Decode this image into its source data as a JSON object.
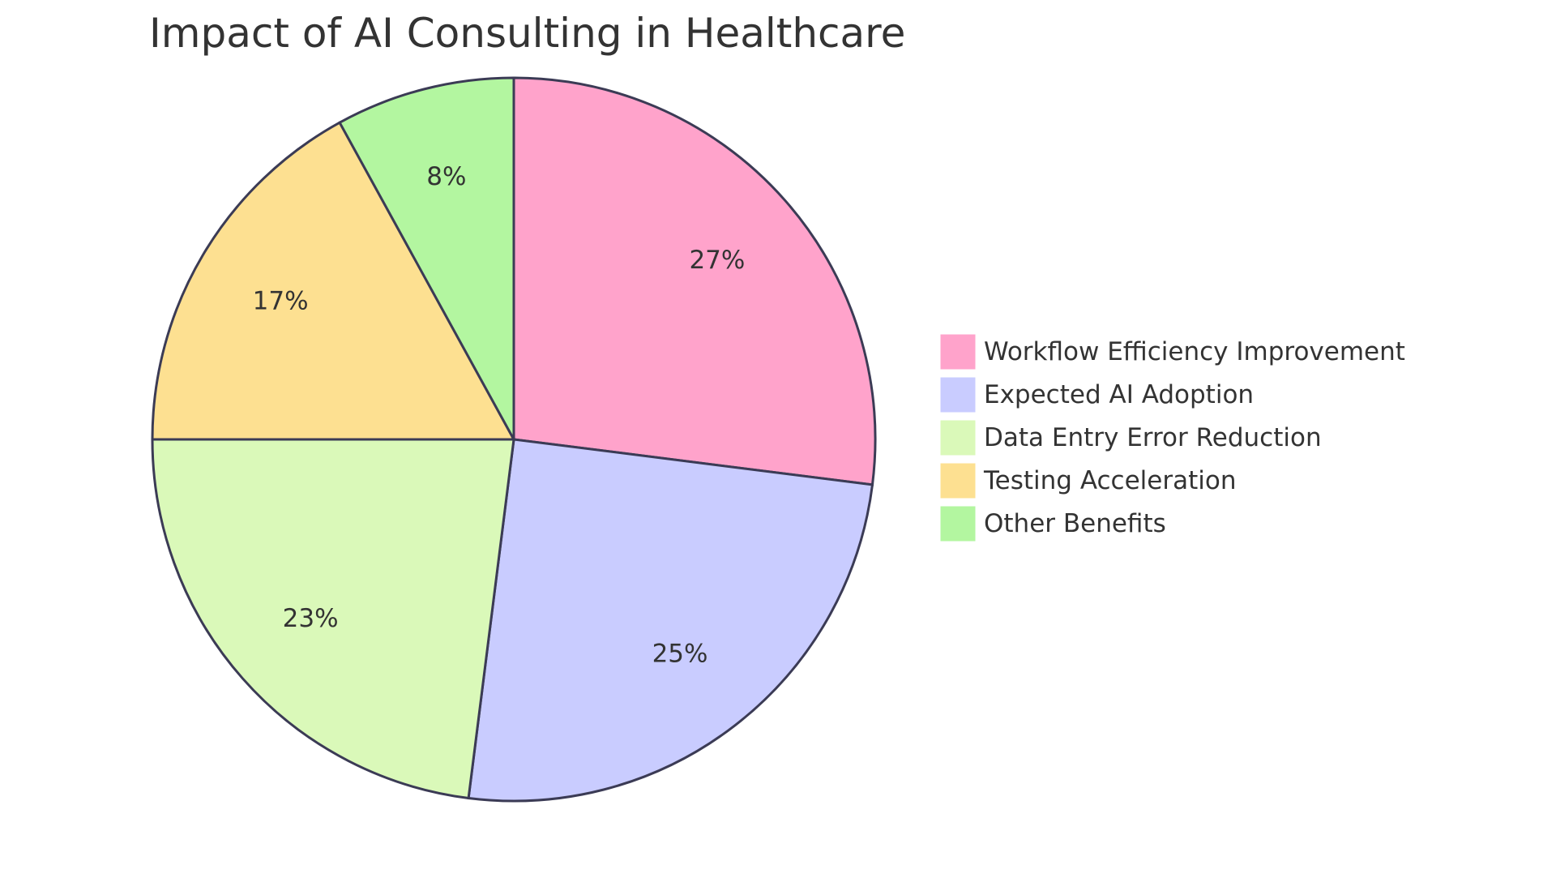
{
  "chart_data": {
    "type": "pie",
    "title": "Impact of AI Consulting in Healthcare",
    "categories": [
      "Workflow Efficiency Improvement",
      "Expected AI Adoption",
      "Data Entry Error Reduction",
      "Testing Acceleration",
      "Other Benefits"
    ],
    "values": [
      27,
      25,
      23,
      17,
      8
    ],
    "labels": [
      "27%",
      "25%",
      "23%",
      "17%",
      "8%"
    ],
    "colors": [
      "#ffa3cb",
      "#c9ccff",
      "#daf9b9",
      "#fde091",
      "#b3f6a0"
    ],
    "stroke_color": "#3b3b55",
    "legend_position": "right"
  }
}
